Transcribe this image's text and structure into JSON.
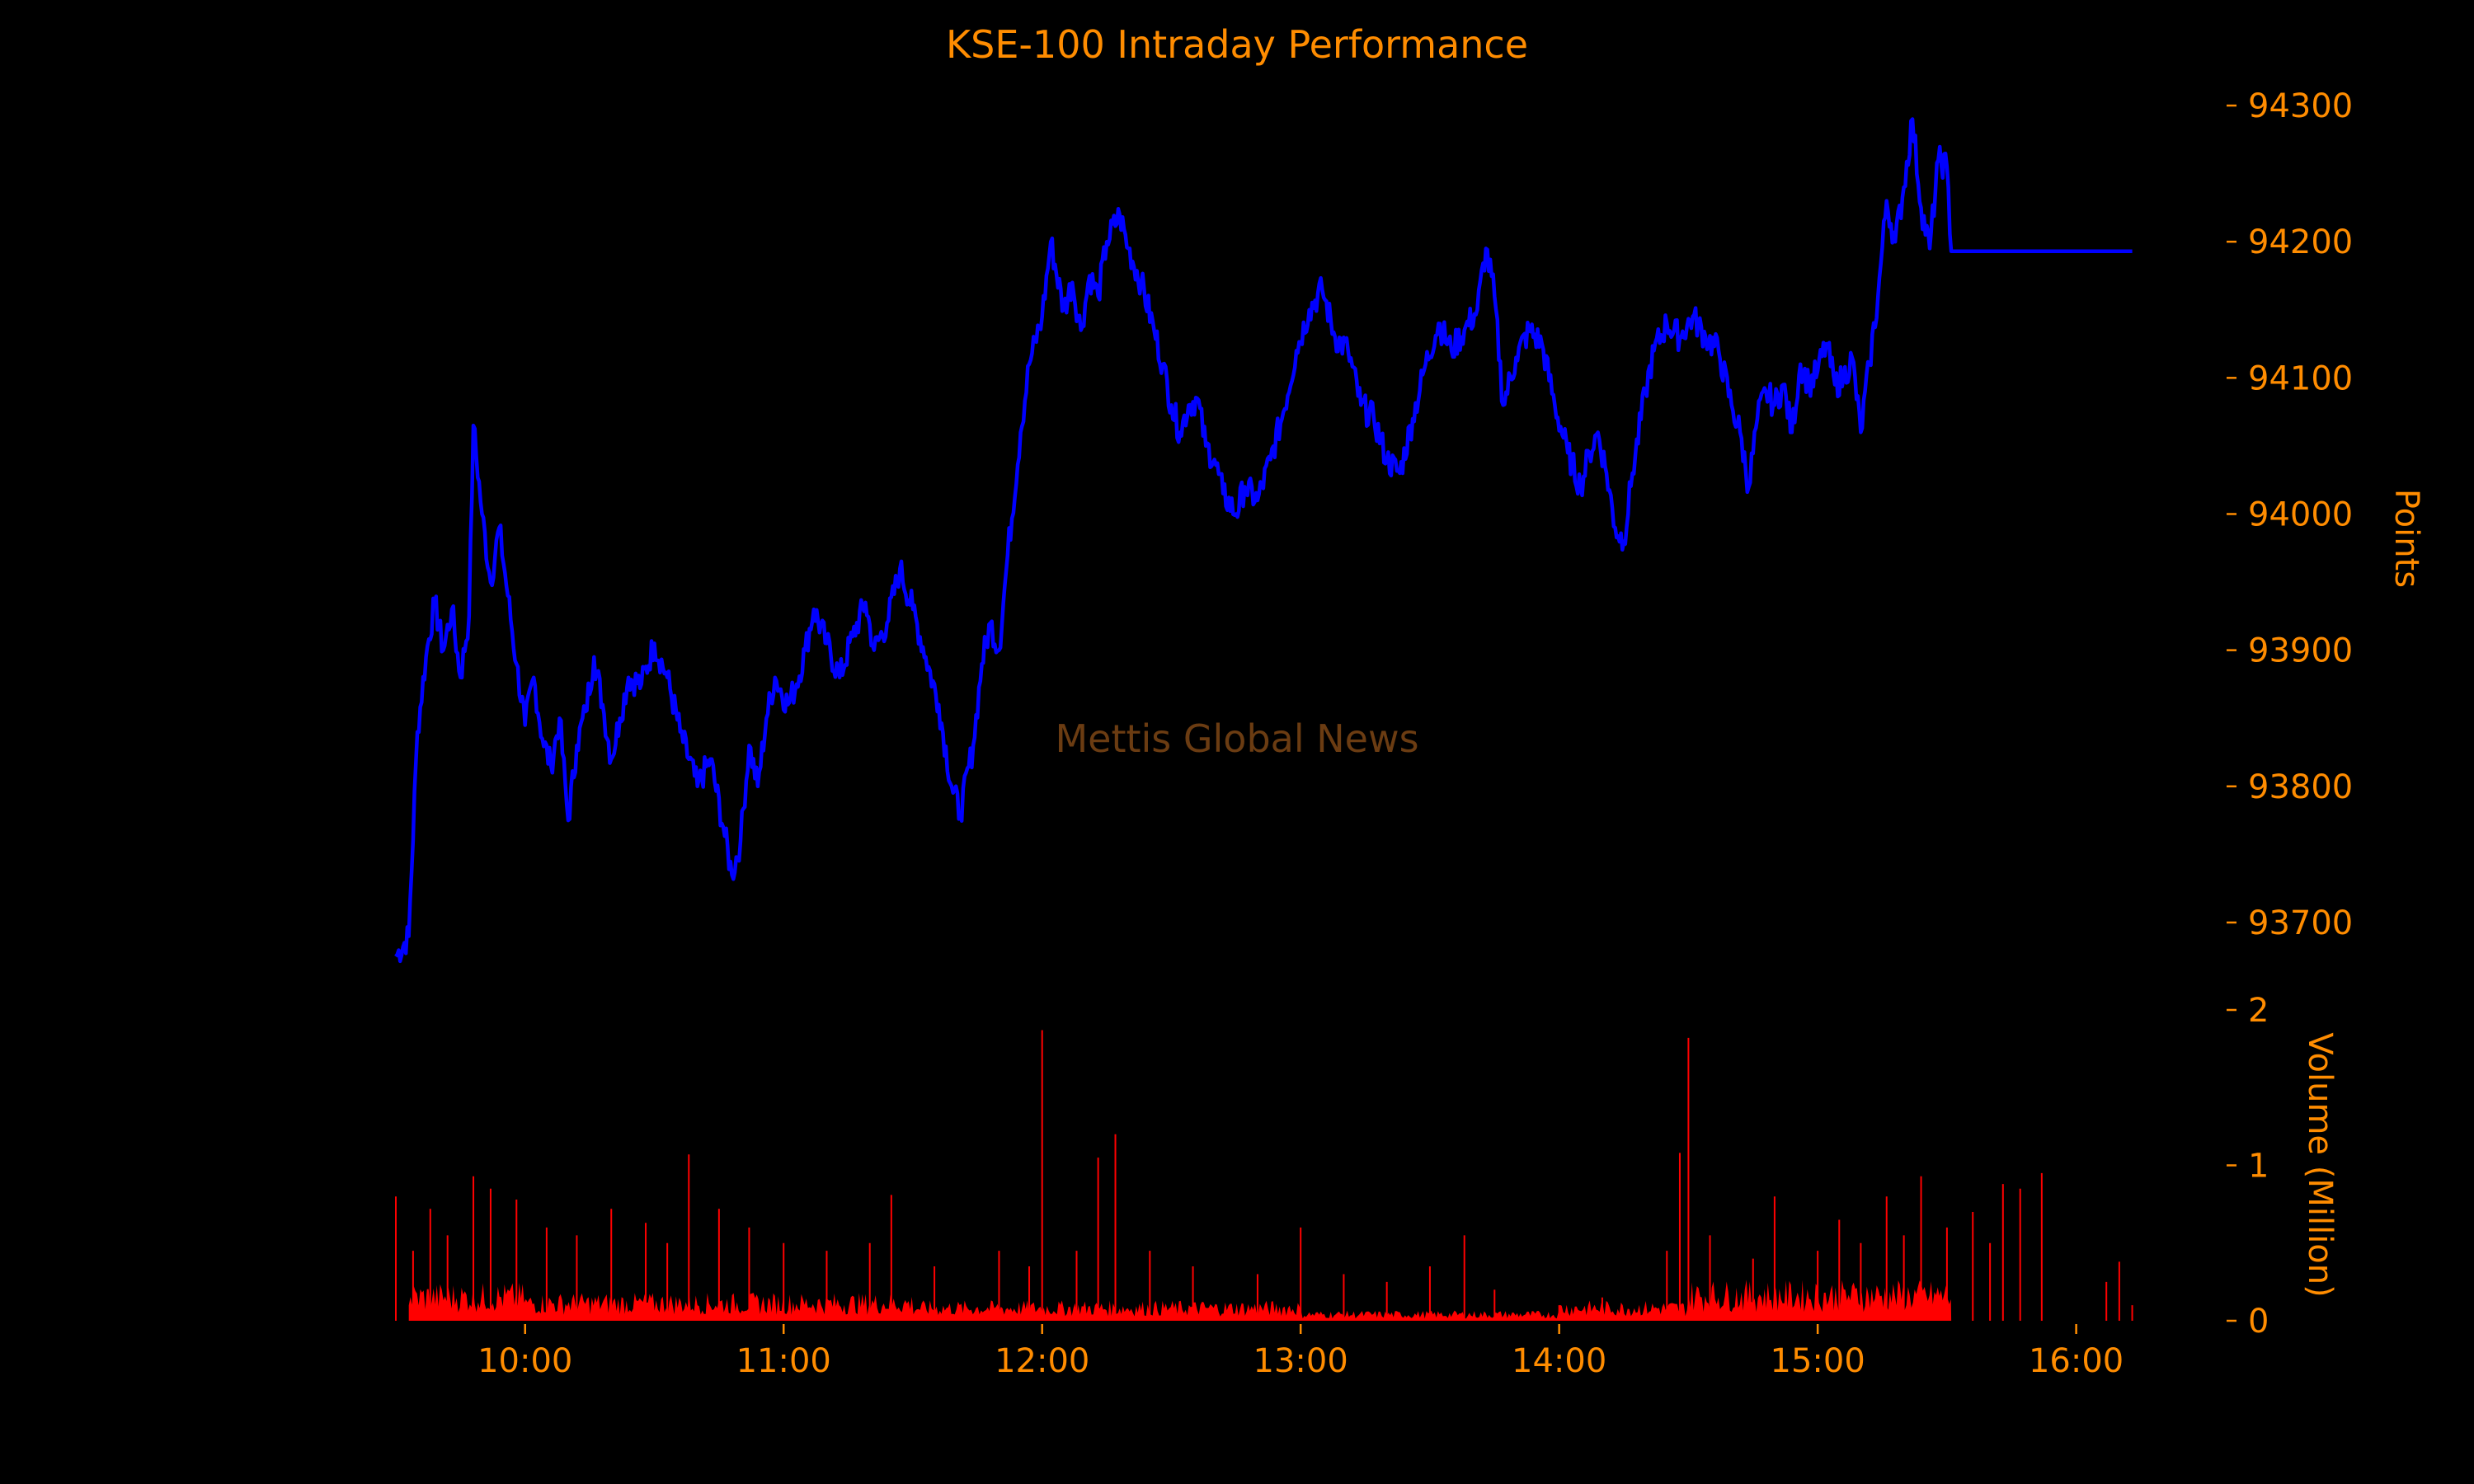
{
  "chart_data": {
    "type": "line",
    "title": "KSE-100 Intraday Performance",
    "watermark": "Mettis Global News",
    "x_tick_labels": [
      "10:00",
      "11:00",
      "12:00",
      "13:00",
      "14:00",
      "15:00",
      "16:00"
    ],
    "x_range": [
      "09:30",
      "16:15"
    ],
    "price_panel": {
      "ylabel": "Points",
      "y_ticks": [
        93700,
        93800,
        93900,
        94000,
        94100,
        94200,
        94300
      ],
      "ylim": [
        93660,
        94320
      ],
      "series": [
        {
          "color": "#0000ff",
          "points": [
            [
              "09:30",
              93675
            ],
            [
              "09:33",
              93690
            ],
            [
              "09:35",
              93840
            ],
            [
              "09:37",
              93895
            ],
            [
              "09:39",
              93935
            ],
            [
              "09:41",
              93900
            ],
            [
              "09:43",
              93930
            ],
            [
              "09:45",
              93880
            ],
            [
              "09:47",
              93925
            ],
            [
              "09:48",
              94065
            ],
            [
              "09:50",
              94000
            ],
            [
              "09:52",
              93950
            ],
            [
              "09:54",
              93990
            ],
            [
              "09:56",
              93940
            ],
            [
              "09:58",
              93890
            ],
            [
              "10:00",
              93845
            ],
            [
              "10:02",
              93880
            ],
            [
              "10:04",
              93835
            ],
            [
              "10:06",
              93815
            ],
            [
              "10:08",
              93850
            ],
            [
              "10:10",
              93775
            ],
            [
              "10:12",
              93830
            ],
            [
              "10:14",
              93855
            ],
            [
              "10:16",
              93895
            ],
            [
              "10:18",
              93860
            ],
            [
              "10:20",
              93820
            ],
            [
              "10:22",
              93850
            ],
            [
              "10:24",
              93880
            ],
            [
              "10:27",
              93875
            ],
            [
              "10:30",
              93905
            ],
            [
              "10:33",
              93880
            ],
            [
              "10:36",
              93840
            ],
            [
              "10:40",
              93800
            ],
            [
              "10:43",
              93820
            ],
            [
              "10:46",
              93770
            ],
            [
              "10:48",
              93735
            ],
            [
              "10:50",
              93760
            ],
            [
              "10:52",
              93830
            ],
            [
              "10:54",
              93800
            ],
            [
              "10:56",
              93850
            ],
            [
              "10:58",
              93880
            ],
            [
              "11:01",
              93860
            ],
            [
              "11:03",
              93875
            ],
            [
              "11:05",
              93900
            ],
            [
              "11:07",
              93930
            ],
            [
              "11:10",
              93905
            ],
            [
              "11:13",
              93880
            ],
            [
              "11:16",
              93910
            ],
            [
              "11:19",
              93935
            ],
            [
              "11:21",
              93900
            ],
            [
              "11:24",
              93920
            ],
            [
              "11:27",
              93960
            ],
            [
              "11:30",
              93930
            ],
            [
              "11:33",
              93895
            ],
            [
              "11:36",
              93860
            ],
            [
              "11:39",
              93800
            ],
            [
              "11:41",
              93780
            ],
            [
              "11:44",
              93830
            ],
            [
              "11:46",
              93890
            ],
            [
              "11:48",
              93920
            ],
            [
              "11:50",
              93900
            ],
            [
              "11:52",
              93970
            ],
            [
              "11:55",
              94060
            ],
            [
              "11:57",
              94110
            ],
            [
              "12:00",
              94145
            ],
            [
              "12:02",
              94200
            ],
            [
              "12:05",
              94150
            ],
            [
              "12:07",
              94170
            ],
            [
              "12:09",
              94135
            ],
            [
              "12:11",
              94175
            ],
            [
              "12:13",
              94160
            ],
            [
              "12:15",
              94200
            ],
            [
              "12:18",
              94220
            ],
            [
              "12:20",
              94195
            ],
            [
              "12:23",
              94170
            ],
            [
              "12:26",
              94135
            ],
            [
              "12:28",
              94110
            ],
            [
              "12:30",
              94080
            ],
            [
              "12:32",
              94060
            ],
            [
              "12:34",
              94080
            ],
            [
              "12:36",
              94085
            ],
            [
              "12:38",
              94050
            ],
            [
              "12:40",
              94040
            ],
            [
              "12:42",
              94015
            ],
            [
              "12:45",
              94000
            ],
            [
              "12:47",
              94020
            ],
            [
              "12:50",
              94010
            ],
            [
              "12:53",
              94040
            ],
            [
              "12:56",
              94075
            ],
            [
              "12:59",
              94120
            ],
            [
              "13:02",
              94150
            ],
            [
              "13:05",
              94165
            ],
            [
              "13:08",
              94130
            ],
            [
              "13:11",
              94120
            ],
            [
              "13:14",
              94080
            ],
            [
              "13:17",
              94070
            ],
            [
              "13:20",
              94040
            ],
            [
              "13:23",
              94030
            ],
            [
              "13:26",
              94070
            ],
            [
              "13:29",
              94110
            ],
            [
              "13:32",
              94140
            ],
            [
              "13:35",
              94120
            ],
            [
              "13:38",
              94135
            ],
            [
              "13:41",
              94150
            ],
            [
              "13:43",
              94195
            ],
            [
              "13:45",
              94160
            ],
            [
              "13:47",
              94080
            ],
            [
              "13:50",
              94115
            ],
            [
              "13:53",
              94135
            ],
            [
              "13:56",
              94125
            ],
            [
              "13:59",
              94080
            ],
            [
              "14:02",
              94045
            ],
            [
              "14:05",
              94020
            ],
            [
              "14:07",
              94045
            ],
            [
              "14:09",
              94060
            ],
            [
              "14:11",
              94030
            ],
            [
              "14:13",
              93990
            ],
            [
              "14:15",
              93980
            ],
            [
              "14:17",
              94030
            ],
            [
              "14:20",
              94090
            ],
            [
              "14:22",
              94120
            ],
            [
              "14:25",
              94140
            ],
            [
              "14:28",
              94130
            ],
            [
              "14:31",
              94145
            ],
            [
              "14:34",
              94130
            ],
            [
              "14:37",
              94120
            ],
            [
              "14:40",
              94080
            ],
            [
              "14:42",
              94060
            ],
            [
              "14:44",
              94020
            ],
            [
              "14:46",
              94070
            ],
            [
              "14:48",
              94090
            ],
            [
              "14:50",
              94080
            ],
            [
              "14:52",
              94095
            ],
            [
              "14:54",
              94060
            ],
            [
              "14:56",
              94110
            ],
            [
              "14:58",
              94095
            ],
            [
              "15:00",
              94105
            ],
            [
              "15:02",
              94125
            ],
            [
              "15:04",
              94095
            ],
            [
              "15:06",
              94100
            ],
            [
              "15:08",
              94115
            ],
            [
              "15:10",
              94060
            ],
            [
              "15:12",
              94110
            ],
            [
              "15:14",
              94160
            ],
            [
              "15:16",
              94230
            ],
            [
              "15:18",
              94200
            ],
            [
              "15:20",
              94240
            ],
            [
              "15:22",
              94290
            ],
            [
              "15:24",
              94225
            ],
            [
              "15:26",
              94195
            ],
            [
              "15:28",
              94260
            ],
            [
              "15:30",
              94255
            ],
            [
              "15:31",
              94193
            ],
            [
              "16:13",
              94193
            ]
          ]
        }
      ]
    },
    "volume_panel": {
      "ylabel": "Volume (Million)",
      "y_ticks": [
        0,
        1,
        2
      ],
      "ylim": [
        0,
        2
      ],
      "color": "#ff0000",
      "units": "Million",
      "spikes": [
        [
          "09:30",
          0.8
        ],
        [
          "09:34",
          0.45
        ],
        [
          "09:38",
          0.72
        ],
        [
          "09:42",
          0.55
        ],
        [
          "09:48",
          0.93
        ],
        [
          "09:52",
          0.85
        ],
        [
          "09:58",
          0.78
        ],
        [
          "10:05",
          0.6
        ],
        [
          "10:12",
          0.55
        ],
        [
          "10:20",
          0.72
        ],
        [
          "10:28",
          0.63
        ],
        [
          "10:33",
          0.5
        ],
        [
          "10:38",
          1.07
        ],
        [
          "10:45",
          0.72
        ],
        [
          "10:52",
          0.6
        ],
        [
          "11:00",
          0.5
        ],
        [
          "11:10",
          0.45
        ],
        [
          "11:20",
          0.5
        ],
        [
          "11:25",
          0.81
        ],
        [
          "11:35",
          0.35
        ],
        [
          "11:50",
          0.45
        ],
        [
          "11:57",
          0.35
        ],
        [
          "12:00",
          1.87
        ],
        [
          "12:08",
          0.45
        ],
        [
          "12:13",
          1.05
        ],
        [
          "12:17",
          1.2
        ],
        [
          "12:25",
          0.45
        ],
        [
          "12:35",
          0.35
        ],
        [
          "12:50",
          0.3
        ],
        [
          "13:00",
          0.6
        ],
        [
          "13:10",
          0.3
        ],
        [
          "13:20",
          0.25
        ],
        [
          "13:30",
          0.35
        ],
        [
          "13:38",
          0.55
        ],
        [
          "13:45",
          0.2
        ],
        [
          "14:00",
          0.1
        ],
        [
          "14:10",
          0.15
        ],
        [
          "14:25",
          0.45
        ],
        [
          "14:28",
          1.08
        ],
        [
          "14:30",
          1.82
        ],
        [
          "14:35",
          0.55
        ],
        [
          "14:45",
          0.4
        ],
        [
          "14:50",
          0.8
        ],
        [
          "15:00",
          0.45
        ],
        [
          "15:05",
          0.65
        ],
        [
          "15:10",
          0.5
        ],
        [
          "15:16",
          0.8
        ],
        [
          "15:20",
          0.55
        ],
        [
          "15:24",
          0.93
        ],
        [
          "15:30",
          0.6
        ],
        [
          "15:36",
          0.7
        ],
        [
          "15:40",
          0.5
        ],
        [
          "15:43",
          0.88
        ],
        [
          "15:47",
          0.85
        ],
        [
          "15:52",
          0.95
        ],
        [
          "16:07",
          0.25
        ],
        [
          "16:10",
          0.38
        ],
        [
          "16:13",
          0.1
        ]
      ]
    }
  }
}
